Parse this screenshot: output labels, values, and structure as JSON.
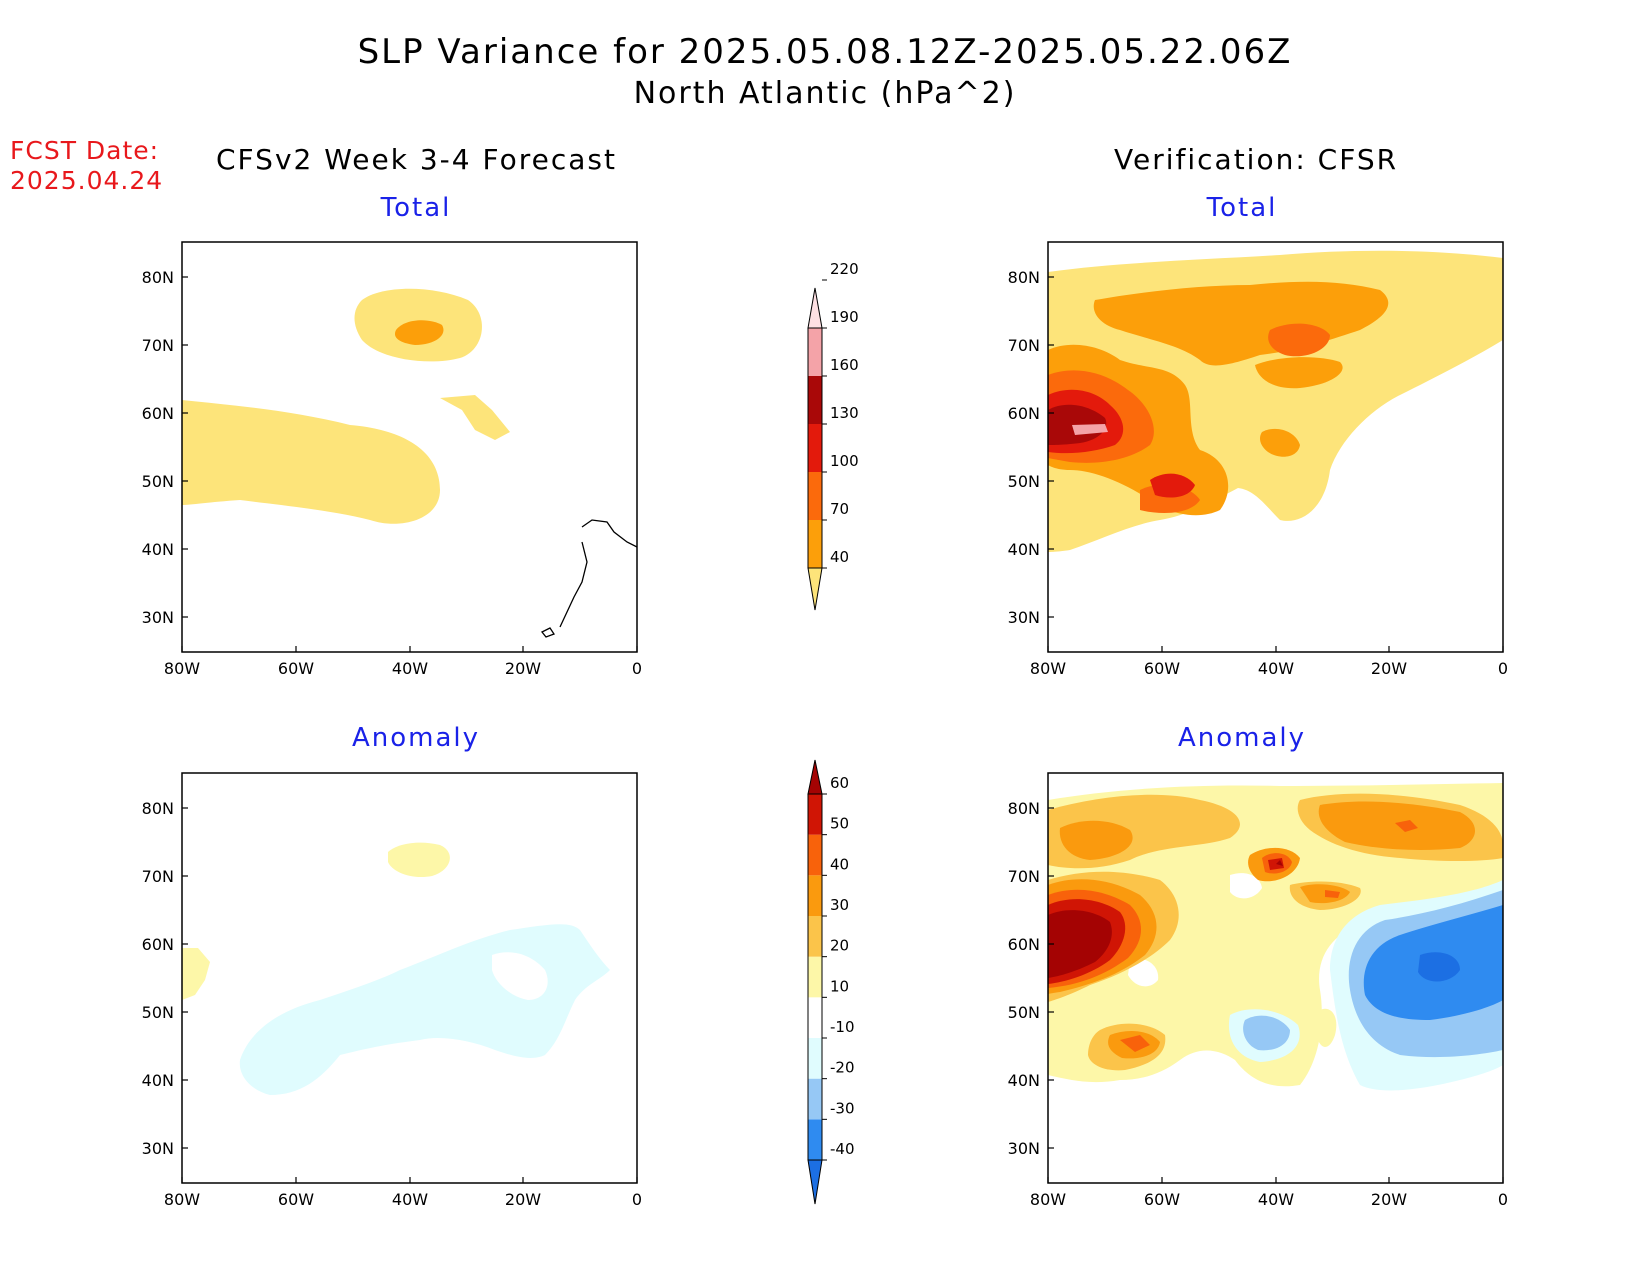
{
  "title": {
    "line1": "SLP Variance for 2025.05.08.12Z-2025.05.22.06Z",
    "line2": "North Atlantic (hPa^2)"
  },
  "fcst_date": {
    "label": "FCST Date:",
    "value": "2025.04.24"
  },
  "columns": {
    "left": "CFSv2 Week 3-4 Forecast",
    "right": "Verification: CFSR"
  },
  "panels": [
    {
      "id": "forecast-total",
      "title": "Total"
    },
    {
      "id": "verification-total",
      "title": "Total"
    },
    {
      "id": "forecast-anomaly",
      "title": "Anomaly"
    },
    {
      "id": "verification-anomaly",
      "title": "Anomaly"
    }
  ],
  "axes": {
    "lat_labels": [
      "80N",
      "70N",
      "60N",
      "50N",
      "40N",
      "30N"
    ],
    "lon_labels": [
      "80W",
      "60W",
      "40W",
      "20W",
      "0"
    ]
  },
  "colorbars": {
    "total": {
      "levels": [
        "40",
        "70",
        "100",
        "130",
        "160",
        "190",
        "220"
      ],
      "colors": [
        "#fde47a",
        "#fc9f0a",
        "#fb6a0c",
        "#e31a0c",
        "#a90808",
        "#f4a3a8",
        "#fde0e3"
      ]
    },
    "anomaly": {
      "levels": [
        "-40",
        "-30",
        "-20",
        "-10",
        "10",
        "20",
        "30",
        "40",
        "50",
        "60"
      ],
      "colors": [
        "#1c6fe3",
        "#2f8bf0",
        "#96c8f5",
        "#e0fcfe",
        "#ffffff",
        "#fdf7a8",
        "#fbc44a",
        "#fa9a0e",
        "#f8620b",
        "#d01505",
        "#a40303"
      ]
    }
  }
}
